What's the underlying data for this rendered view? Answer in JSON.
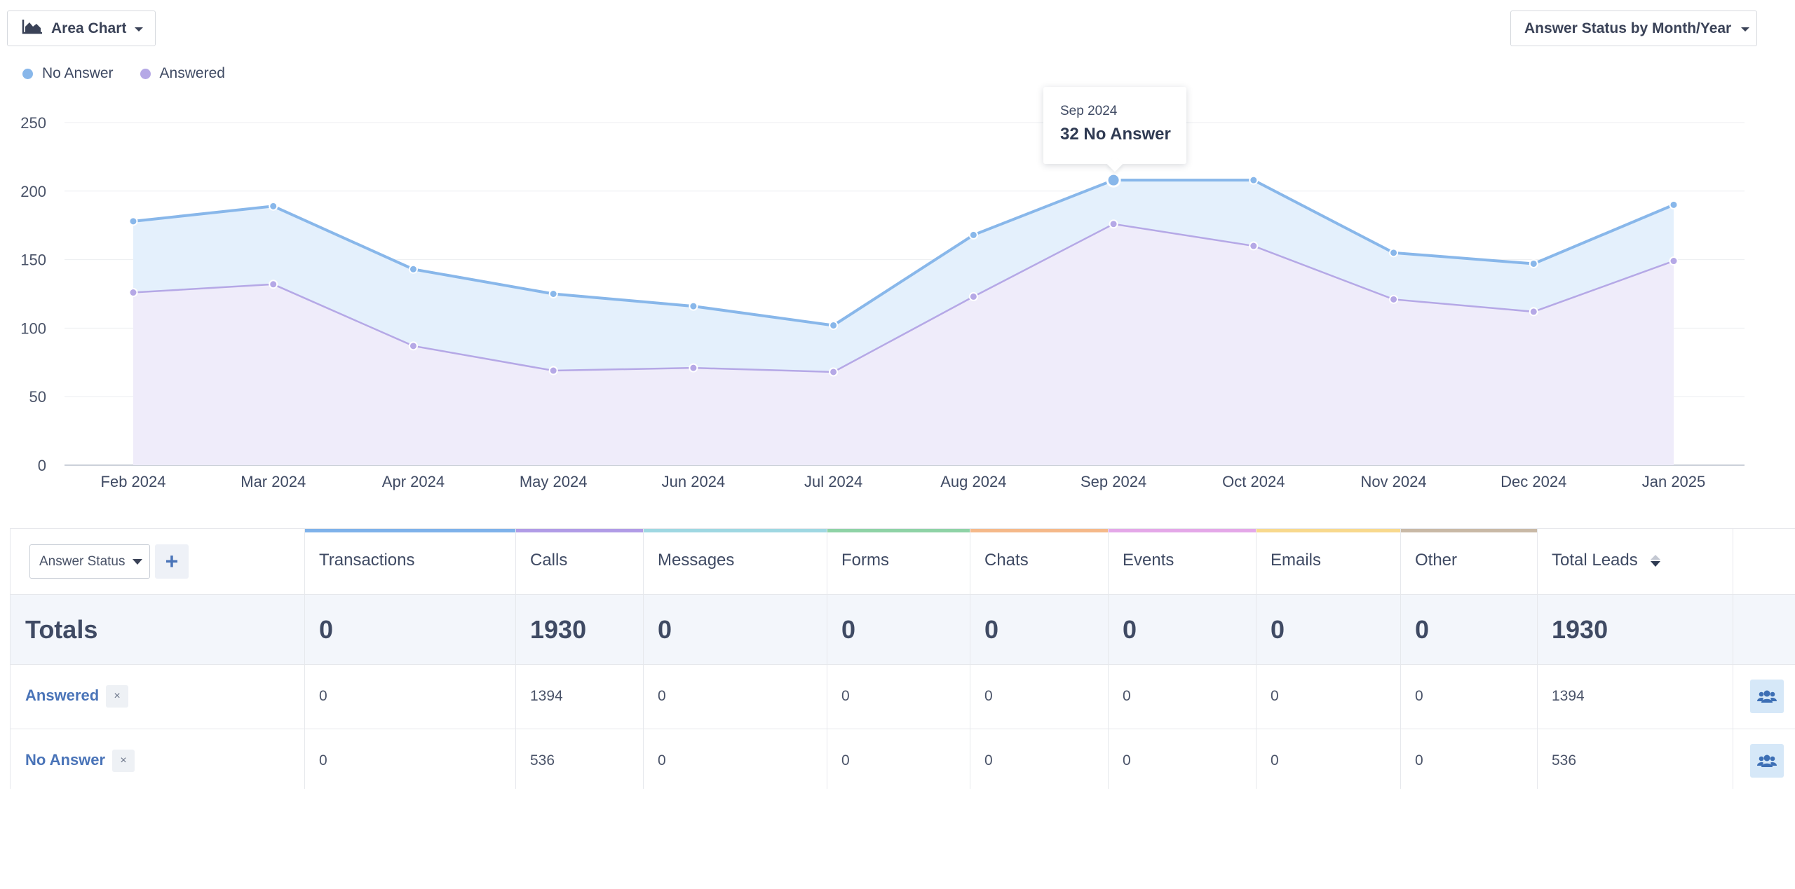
{
  "toolbar": {
    "chart_type_label": "Area Chart",
    "chart_type_icon": "area-chart-icon",
    "group_by_label": "Answer Status by Month/Year"
  },
  "colors": {
    "no_answer": "#88b7ea",
    "answered": "#b5a8e6",
    "no_answer_fill": "#e4f0fc",
    "answered_fill": "#efecfa"
  },
  "legend": [
    {
      "label": "No Answer",
      "color": "#88b7ea"
    },
    {
      "label": "Answered",
      "color": "#b5a8e6"
    }
  ],
  "tooltip": {
    "date": "Sep 2024",
    "value": "32 No Answer"
  },
  "chart_data": {
    "type": "area",
    "stacked": true,
    "categories": [
      "Feb 2024",
      "Mar 2024",
      "Apr 2024",
      "May 2024",
      "Jun 2024",
      "Jul 2024",
      "Aug 2024",
      "Sep 2024",
      "Oct 2024",
      "Nov 2024",
      "Dec 2024",
      "Jan 2025"
    ],
    "series": [
      {
        "name": "Answered",
        "values": [
          126,
          132,
          87,
          69,
          71,
          68,
          123,
          176,
          160,
          121,
          112,
          149
        ]
      },
      {
        "name": "No Answer",
        "values": [
          52,
          57,
          56,
          56,
          45,
          34,
          45,
          32,
          48,
          34,
          35,
          41
        ]
      }
    ],
    "stack_totals": [
      178,
      189,
      143,
      125,
      116,
      102,
      168,
      208,
      208,
      155,
      147,
      190
    ],
    "y_ticks": [
      0,
      50,
      100,
      150,
      200,
      250
    ],
    "ylim": [
      0,
      250
    ],
    "grid": true,
    "legend_position": "top-left"
  },
  "table": {
    "group_select": "Answer Status",
    "add_label": "+",
    "columns": [
      {
        "label": "Transactions",
        "color": "#7fb2ea"
      },
      {
        "label": "Calls",
        "color": "#b19ce6"
      },
      {
        "label": "Messages",
        "color": "#9fd8e2"
      },
      {
        "label": "Forms",
        "color": "#8fd3a6"
      },
      {
        "label": "Chats",
        "color": "#f5b98a"
      },
      {
        "label": "Events",
        "color": "#e4a8e8"
      },
      {
        "label": "Emails",
        "color": "#f8d98e"
      },
      {
        "label": "Other",
        "color": "#c9b9a6"
      }
    ],
    "total_leads_label": "Total Leads",
    "totals_label": "Totals",
    "totals": [
      "0",
      "1930",
      "0",
      "0",
      "0",
      "0",
      "0",
      "0",
      "1930"
    ],
    "rows": [
      {
        "label": "Answered",
        "values": [
          "0",
          "1394",
          "0",
          "0",
          "0",
          "0",
          "0",
          "0",
          "1394"
        ]
      },
      {
        "label": "No Answer",
        "values": [
          "0",
          "536",
          "0",
          "0",
          "0",
          "0",
          "0",
          "0",
          "536"
        ]
      }
    ],
    "remove_label": "×"
  }
}
